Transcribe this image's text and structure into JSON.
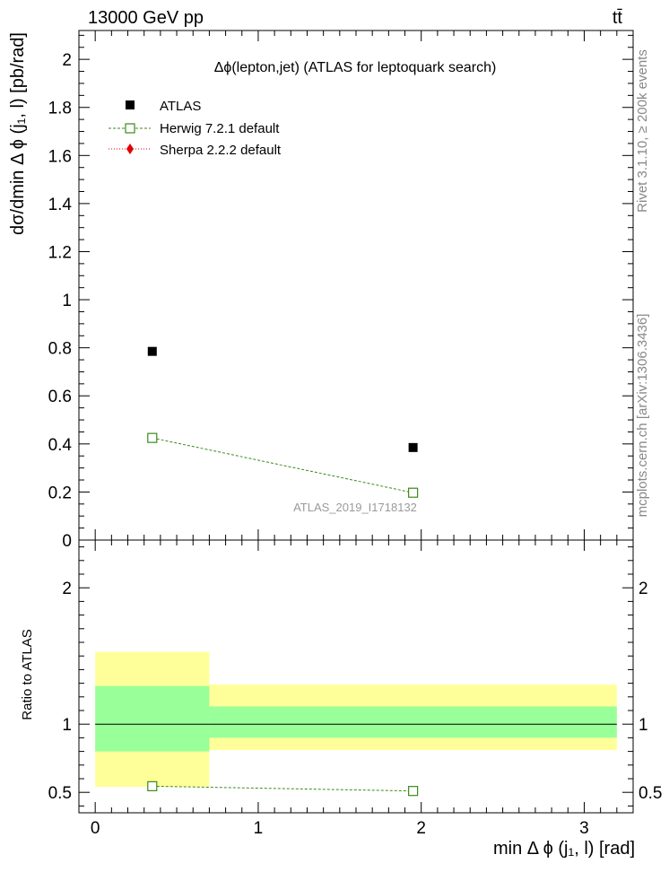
{
  "chart_data": {
    "type": "scatter",
    "header_left": "13000 GeV pp",
    "header_right": "tt̄",
    "title": "Δϕ(lepton,jet) (ATLAS for leptoquark search)",
    "ylabel_main": "dσ/dmin Δ ϕ (j₁, l) [pb/rad]",
    "ylabel_ratio": "Ratio to ATLAS",
    "xlabel": "min Δ ϕ (j₁, l) [rad]",
    "watermark": "ATLAS_2019_I1718132",
    "side_text_top": "Rivet 3.1.10, ≥ 200k events",
    "side_text_bottom": "mcplots.cern.ch [arXiv:1306.3436]",
    "xlim": [
      -0.1,
      3.3
    ],
    "ylim_main": [
      0,
      2.12
    ],
    "ylim_ratio": [
      0.35,
      2.35
    ],
    "x_ticks": [
      0,
      1,
      2,
      3
    ],
    "y_ticks_main": [
      0,
      0.2,
      0.4,
      0.6,
      0.8,
      1,
      1.2,
      1.4,
      1.6,
      1.8,
      2
    ],
    "y_tick_labels_main": [
      "0",
      "0.2",
      "0.4",
      "0.6",
      "0.8",
      "1",
      "1.2",
      "1.4",
      "1.6",
      "1.8",
      "2"
    ],
    "y_ticks_ratio": [
      0.5,
      1,
      2
    ],
    "y_tick_labels_ratio": [
      "0.5",
      "1",
      "2"
    ],
    "bins": [
      [
        0,
        0.7
      ],
      [
        0.7,
        3.2
      ]
    ],
    "x": [
      0.35,
      1.95
    ],
    "series": [
      {
        "name": "ATLAS",
        "role": "data",
        "values": [
          0.785,
          0.385
        ],
        "color": "#000000",
        "marker": "square-filled"
      },
      {
        "name": "Herwig 7.2.1 default",
        "role": "mc",
        "values": [
          0.425,
          0.197
        ],
        "color": "#3a8a1c",
        "marker": "square-open",
        "line": "dashed"
      },
      {
        "name": "Sherpa 2.2.2 default",
        "role": "mc",
        "values": [],
        "color": "#e00000",
        "marker": "diamond-filled",
        "line": "dotted"
      }
    ],
    "ratio": {
      "herwig": [
        0.545,
        0.51
      ],
      "band_green": [
        [
          0.8,
          1.28
        ],
        [
          0.9,
          1.13
        ]
      ],
      "band_yellow": [
        [
          0.54,
          1.53
        ],
        [
          0.81,
          1.29
        ]
      ]
    }
  }
}
